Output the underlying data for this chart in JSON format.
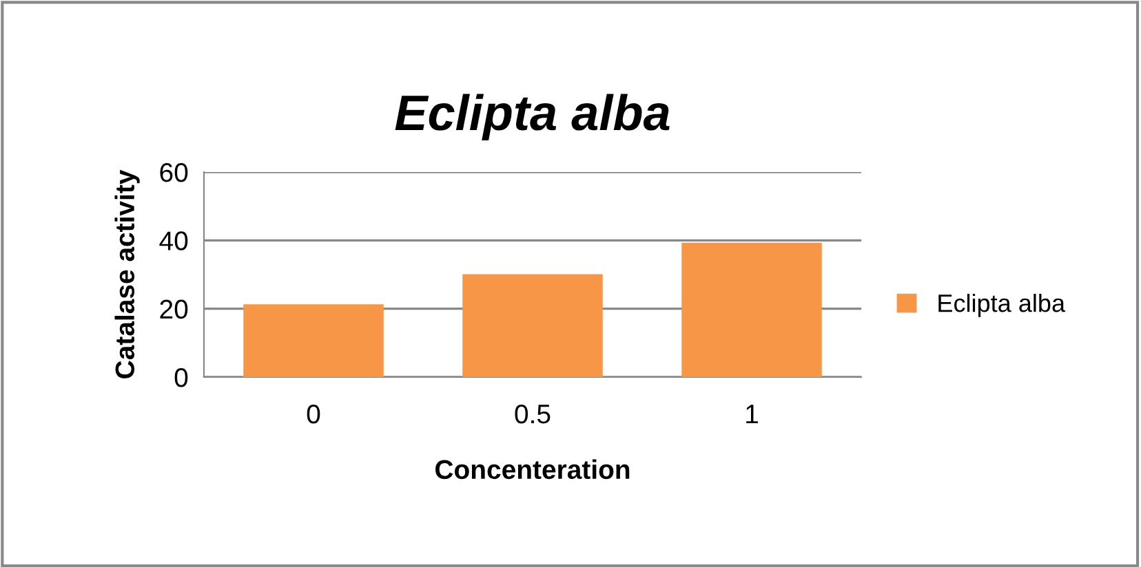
{
  "chart_data": {
    "type": "bar",
    "title": "Eclipta alba",
    "xlabel": "Concenteration",
    "ylabel": "Catalase activity",
    "categories": [
      "0",
      "0.5",
      "1"
    ],
    "series": [
      {
        "name": "Eclipta alba",
        "color": "#f79646",
        "values": [
          21.3,
          30.1,
          39.3
        ]
      }
    ],
    "ylim": [
      0,
      60
    ],
    "yticks": [
      0,
      20,
      40,
      60
    ],
    "grid": "y",
    "legend": "right"
  }
}
